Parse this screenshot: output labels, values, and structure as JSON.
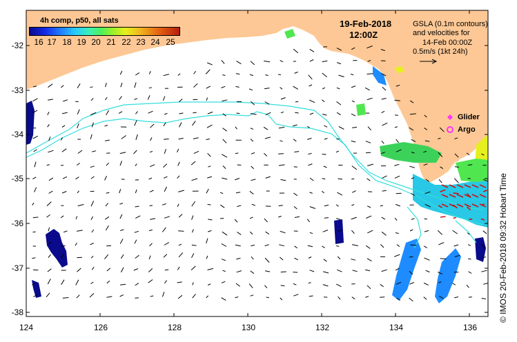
{
  "colorbar": {
    "title": "4h comp, p50, all sats",
    "ticks": [
      "16",
      "17",
      "18",
      "19",
      "20",
      "21",
      "22",
      "23",
      "24",
      "25"
    ]
  },
  "date": "19-Feb-2018",
  "time": "12:00Z",
  "gsla_text": [
    "GSLA (0.1m contours)",
    "and velocities for",
    "14-Feb 00:00Z",
    "0.5m/s (1kt 24h)"
  ],
  "legend": {
    "glider": "Glider",
    "argo": "Argo"
  },
  "credit": "© IMOS 20-Feb-2018 09:32 Hobart Time",
  "colors": {
    "land": "#fdc895",
    "contour": "#33dddd",
    "vector": "#000000",
    "vector_hot": "#cc1111",
    "glider": "#ff33ff",
    "argo": "#ff33ff",
    "sst_cold": "#0a0a8c",
    "sst_cool": "#1e8cff",
    "sst_mid": "#28e0c8",
    "sst_warm": "#50e650",
    "sst_hot": "#e6f01e"
  },
  "axes": {
    "x_ticks": [
      "124",
      "126",
      "128",
      "130",
      "132",
      "134",
      "136"
    ],
    "y_ticks": [
      "-32",
      "-33",
      "-34",
      "-35",
      "-36",
      "-37",
      "-38"
    ],
    "lon_range": [
      124,
      136.6
    ],
    "lat_range": [
      -38.1,
      -31.35
    ]
  }
}
